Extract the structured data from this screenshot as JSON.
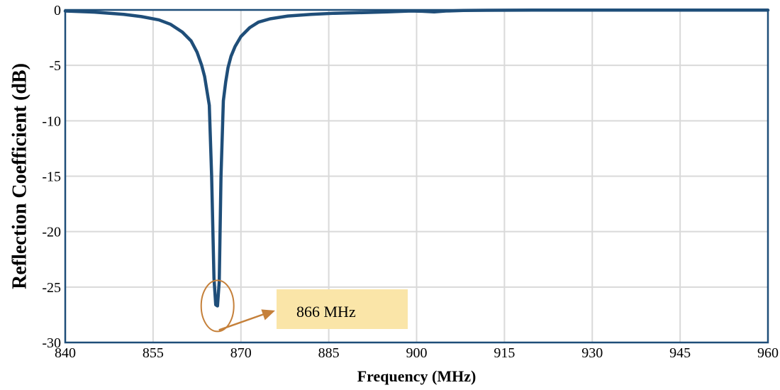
{
  "chart_data": {
    "type": "line",
    "title": "",
    "xlabel": "Frequency (MHz)",
    "ylabel": "Reflection Coefficient (dB)",
    "xlim": [
      840,
      960
    ],
    "ylim": [
      -30,
      0
    ],
    "xticks": [
      840,
      855,
      870,
      885,
      900,
      915,
      930,
      945,
      960
    ],
    "yticks": [
      0,
      -5,
      -10,
      -15,
      -20,
      -25,
      -30
    ],
    "grid": true,
    "series": [
      {
        "color": "#1f4e79",
        "x": [
          840,
          845,
          850,
          853,
          856,
          858,
          860,
          861.5,
          862.5,
          863.3,
          863.8,
          864.2,
          864.6,
          865,
          865.4,
          865.7,
          866,
          866.3,
          866.6,
          867,
          867.4,
          867.8,
          868.3,
          869,
          870,
          871.5,
          873,
          875,
          878,
          882,
          886,
          890,
          895,
          899,
          901,
          903,
          905,
          908,
          912,
          920,
          930,
          940,
          950,
          960
        ],
        "y": [
          -0.1,
          -0.2,
          -0.4,
          -0.6,
          -0.9,
          -1.3,
          -2.0,
          -2.8,
          -3.8,
          -5.0,
          -6.0,
          -7.3,
          -8.6,
          -15.0,
          -24.2,
          -26.6,
          -26.7,
          -24.5,
          -15.0,
          -8.2,
          -6.5,
          -5.2,
          -4.2,
          -3.3,
          -2.4,
          -1.6,
          -1.1,
          -0.8,
          -0.55,
          -0.4,
          -0.3,
          -0.25,
          -0.18,
          -0.1,
          -0.12,
          -0.18,
          -0.1,
          -0.05,
          -0.03,
          -0.02,
          -0.02,
          -0.02,
          -0.02,
          -0.02
        ]
      }
    ],
    "annotations": [
      {
        "text": "866 MHz",
        "marker_x": 866,
        "marker_y": -26.7,
        "box_color": "#fae5a8",
        "marker_color": "#c5803a"
      }
    ]
  }
}
